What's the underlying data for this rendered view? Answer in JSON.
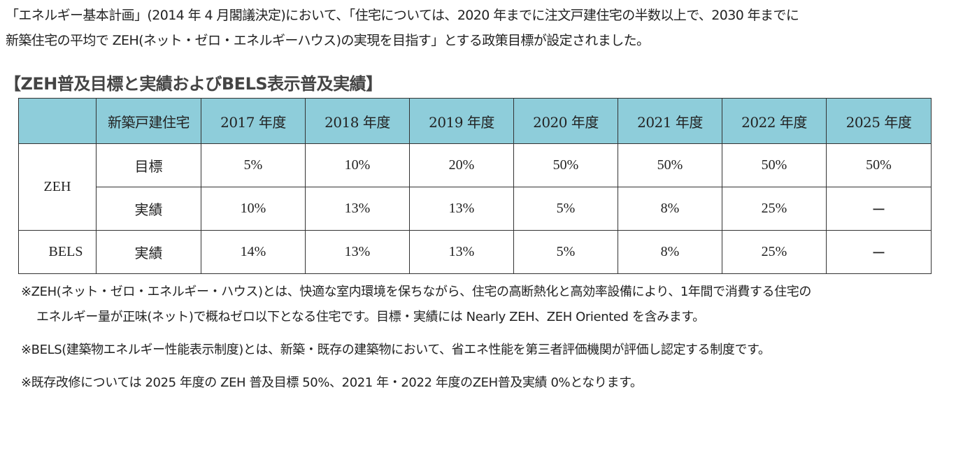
{
  "intro": {
    "line1": "「エネルギー基本計画」(2014 年 4 月閣議決定)において、「住宅については、2020 年までに注文戸建住宅の半数以上で、2030 年までに",
    "line2": "新築住宅の平均で ZEH(ネット・ゼロ・エネルギーハウス)の実現を目指す」とする政策目標が設定されました。"
  },
  "heading": "【ZEH普及目標と実績およびBELS表示普及実績】",
  "table": {
    "category_header": "新築戸建住宅",
    "years": [
      "2017 年度",
      "2018 年度",
      "2019 年度",
      "2020 年度",
      "2021 年度",
      "2022 年度",
      "2025 年度"
    ],
    "groups": [
      {
        "name": "ZEH",
        "rows": [
          {
            "label": "目標",
            "values": [
              "5%",
              "10%",
              "20%",
              "50%",
              "50%",
              "50%",
              "50%"
            ]
          },
          {
            "label": "実績",
            "values": [
              "10%",
              "13%",
              "13%",
              "5%",
              "8%",
              "25%",
              "ー"
            ]
          }
        ]
      },
      {
        "name": "BELS",
        "rows": [
          {
            "label": "実績",
            "values": [
              "14%",
              "13%",
              "13%",
              "5%",
              "8%",
              "25%",
              "ー"
            ]
          }
        ]
      }
    ]
  },
  "notes": {
    "zeh_line1": "※ZEH(ネット・ゼロ・エネルギー・ハウス)とは、快適な室内環境を保ちながら、住宅の高断熱化と高効率設備により、1年間で消費する住宅の",
    "zeh_line2": "エネルギー量が正味(ネット)で概ねゼロ以下となる住宅です。目標・実績には Nearly ZEH、ZEH Oriented を含みます。",
    "bels": "※BELS(建築物エネルギー性能表示制度)とは、新築・既存の建築物において、省エネ性能を第三者評価機関が評価し認定する制度です。",
    "renovation": "※既存改修については 2025 年度の ZEH 普及目標 50%、2021 年・2022 年度のZEH普及実績 0%となります。"
  }
}
